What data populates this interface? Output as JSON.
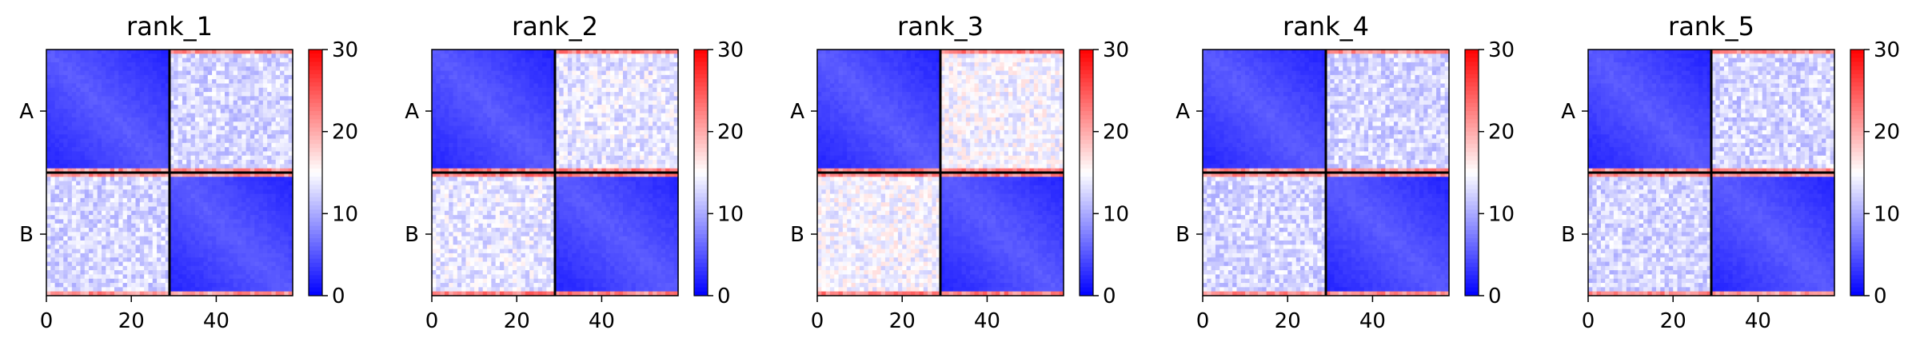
{
  "chart_data": [
    {
      "type": "heatmap",
      "title": "rank_1",
      "x_ticks": [
        0,
        20,
        40
      ],
      "y_ticks": [
        "A",
        "B"
      ],
      "colorbar_ticks": [
        0,
        10,
        20,
        30
      ],
      "clim": [
        0,
        30
      ],
      "matrix_size": 58,
      "boundary": 29,
      "colormap": "bwr",
      "offdiag_level": 13,
      "edge_level": 22
    },
    {
      "type": "heatmap",
      "title": "rank_2",
      "x_ticks": [
        0,
        20,
        40
      ],
      "y_ticks": [
        "A",
        "B"
      ],
      "colorbar_ticks": [
        0,
        10,
        20,
        30
      ],
      "clim": [
        0,
        30
      ],
      "matrix_size": 58,
      "boundary": 29,
      "colormap": "bwr",
      "offdiag_level": 14,
      "edge_level": 23
    },
    {
      "type": "heatmap",
      "title": "rank_3",
      "x_ticks": [
        0,
        20,
        40
      ],
      "y_ticks": [
        "A",
        "B"
      ],
      "colorbar_ticks": [
        0,
        10,
        20,
        30
      ],
      "clim": [
        0,
        30
      ],
      "matrix_size": 58,
      "boundary": 29,
      "colormap": "bwr",
      "offdiag_level": 15,
      "edge_level": 23
    },
    {
      "type": "heatmap",
      "title": "rank_4",
      "x_ticks": [
        0,
        20,
        40
      ],
      "y_ticks": [
        "A",
        "B"
      ],
      "colorbar_ticks": [
        0,
        10,
        20,
        30
      ],
      "clim": [
        0,
        30
      ],
      "matrix_size": 58,
      "boundary": 29,
      "colormap": "bwr",
      "offdiag_level": 13,
      "edge_level": 22
    },
    {
      "type": "heatmap",
      "title": "rank_5",
      "x_ticks": [
        0,
        20,
        40
      ],
      "y_ticks": [
        "A",
        "B"
      ],
      "colorbar_ticks": [
        0,
        10,
        20,
        30
      ],
      "clim": [
        0,
        30
      ],
      "matrix_size": 58,
      "boundary": 29,
      "colormap": "bwr",
      "offdiag_level": 13,
      "edge_level": 22
    }
  ],
  "colors": {
    "low": "#0000ff",
    "mid": "#ffffff",
    "high": "#ff0000",
    "divider": "#000000"
  }
}
